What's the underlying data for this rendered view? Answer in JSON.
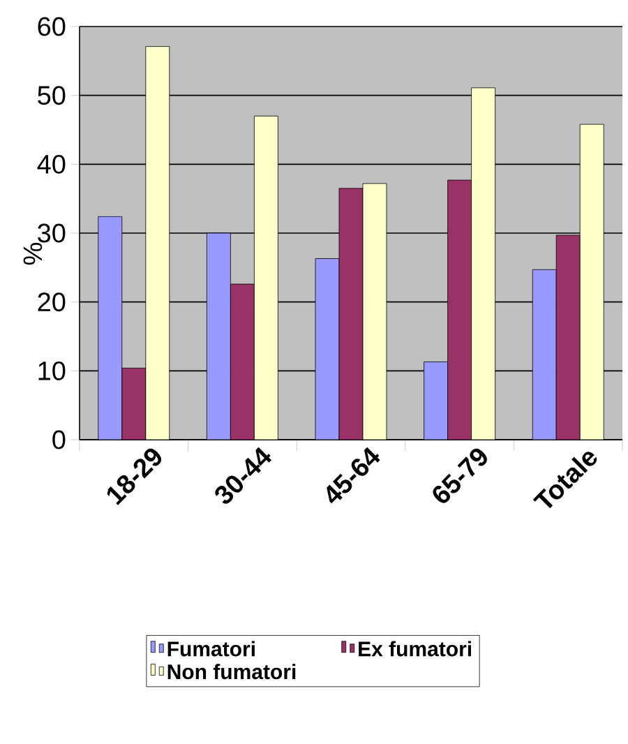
{
  "chart_data": {
    "type": "bar",
    "ylabel": "%",
    "categories": [
      "18-29",
      "30-44",
      "45-64",
      "65-79",
      "Totale"
    ],
    "series": [
      {
        "name": "Fumatori",
        "color": "#9999ff",
        "values": [
          32.4,
          30.0,
          26.3,
          11.3,
          24.7
        ]
      },
      {
        "name": "Ex fumatori",
        "color": "#993366",
        "values": [
          10.4,
          22.6,
          36.5,
          37.7,
          29.7
        ]
      },
      {
        "name": "Non fumatori",
        "color": "#ffffcc",
        "values": [
          57.1,
          47.0,
          37.2,
          51.1,
          45.8
        ]
      }
    ],
    "ylim": [
      0,
      60
    ],
    "yticks": [
      0,
      10,
      20,
      30,
      40,
      50,
      60
    ],
    "grid": "y",
    "legend": "bottom"
  }
}
